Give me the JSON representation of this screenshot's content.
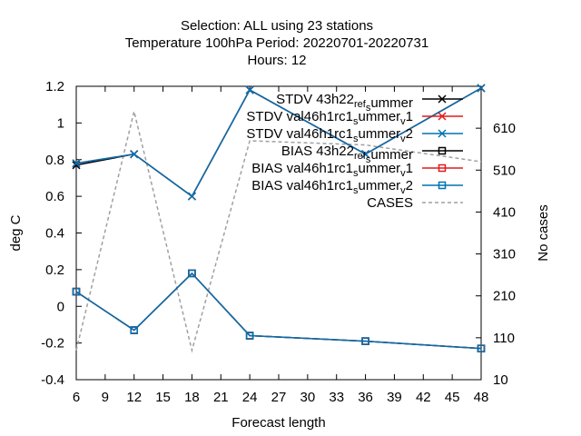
{
  "chart_data": {
    "type": "line",
    "title_lines": [
      "Selection: ALL using    23 stations",
      "Temperature 100hPa   Period: 20220701-20220731",
      "Hours:  12"
    ],
    "xlabel": "Forecast length",
    "ylabel": "deg C",
    "y2label": "No cases",
    "x": [
      6,
      12,
      18,
      24,
      36,
      48
    ],
    "xticks": [
      6,
      9,
      12,
      15,
      18,
      21,
      24,
      27,
      30,
      33,
      36,
      39,
      42,
      45,
      48
    ],
    "xlim": [
      6,
      48
    ],
    "ylim": [
      -0.4,
      1.2
    ],
    "yticks": [
      -0.4,
      -0.2,
      0,
      0.2,
      0.4,
      0.6,
      0.8,
      1,
      1.2
    ],
    "ytick_labels": [
      "-0.4",
      "-0.2",
      "0",
      "0.2",
      "0.4",
      "0.6",
      "0.8",
      "1",
      "1.2"
    ],
    "y2lim": [
      10,
      710
    ],
    "y2ticks": [
      10,
      110,
      210,
      310,
      410,
      510,
      610
    ],
    "grid": false,
    "legend_position": "top-right",
    "series": [
      {
        "name": "STDV 43h22_ref_summer",
        "axis": "y1",
        "color": "#000000",
        "marker": "x",
        "dash": "solid",
        "values": [
          0.77,
          0.83,
          0.6,
          1.18,
          0.83,
          1.19
        ]
      },
      {
        "name": "STDV val46h1rc1_summer_v1",
        "axis": "y1",
        "color": "#e41a1c",
        "marker": "x",
        "dash": "solid",
        "values": [
          0.78,
          0.83,
          0.6,
          1.18,
          0.83,
          1.19
        ]
      },
      {
        "name": "STDV val46h1rc1_summer_v2",
        "axis": "y1",
        "color": "#0072b2",
        "marker": "x",
        "dash": "solid",
        "values": [
          0.78,
          0.83,
          0.6,
          1.18,
          0.83,
          1.19
        ]
      },
      {
        "name": "BIAS 43h22_ref_summer",
        "axis": "y1",
        "color": "#000000",
        "marker": "square",
        "dash": "solid",
        "values": [
          0.08,
          -0.13,
          0.18,
          -0.16,
          -0.19,
          -0.23
        ]
      },
      {
        "name": "BIAS val46h1rc1_summer_v1",
        "axis": "y1",
        "color": "#e41a1c",
        "marker": "square",
        "dash": "solid",
        "values": [
          0.08,
          -0.13,
          0.18,
          -0.16,
          -0.19,
          -0.23
        ]
      },
      {
        "name": "BIAS val46h1rc1_summer_v2",
        "axis": "y1",
        "color": "#0072b2",
        "marker": "square",
        "dash": "solid",
        "values": [
          0.08,
          -0.13,
          0.18,
          -0.16,
          -0.19,
          -0.23
        ]
      },
      {
        "name": "CASES",
        "axis": "y2",
        "color": "#a0a0a0",
        "marker": "none",
        "dash": "dashed",
        "values": [
          80,
          650,
          80,
          580,
          570,
          530
        ]
      }
    ],
    "legend": [
      {
        "prefix": "STDV 43h22",
        "sub": "ref",
        "mid": "",
        "sub2": "s",
        "tail": "ummer",
        "plain": ""
      },
      {
        "prefix": "STDV val46h1rc1",
        "sub": "s",
        "mid": "ummer",
        "sub2": "v",
        "tail": "1",
        "plain": ""
      },
      {
        "prefix": "STDV val46h1rc1",
        "sub": "s",
        "mid": "ummer",
        "sub2": "v",
        "tail": "2",
        "plain": ""
      },
      {
        "prefix": "BIAS 43h22",
        "sub": "ref",
        "mid": "",
        "sub2": "s",
        "tail": "ummer",
        "plain": ""
      },
      {
        "prefix": "BIAS val46h1rc1",
        "sub": "s",
        "mid": "ummer",
        "sub2": "v",
        "tail": "1",
        "plain": ""
      },
      {
        "prefix": "BIAS val46h1rc1",
        "sub": "s",
        "mid": "ummer",
        "sub2": "v",
        "tail": "2",
        "plain": ""
      },
      {
        "prefix": "",
        "sub": "",
        "mid": "",
        "sub2": "",
        "tail": "",
        "plain": "CASES"
      }
    ]
  }
}
